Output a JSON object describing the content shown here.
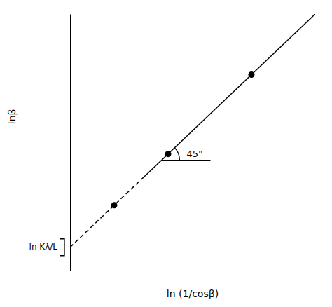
{
  "chart_data": {
    "type": "scatter",
    "xlabel": "ln (1/cosβ)",
    "ylabel": "lnβ",
    "annotations": [
      "45°",
      "ln Kλ/L"
    ],
    "xlim": [
      0.0,
      1.0
    ],
    "ylim": [
      0.0,
      1.1
    ],
    "tick_labels": false,
    "grid": false,
    "series": [
      {
        "type": "line",
        "line_style": "dashed",
        "color": "#000000",
        "x": [
          0.0,
          0.29
        ],
        "values": [
          0.1,
          0.39
        ]
      },
      {
        "type": "line",
        "line_style": "solid",
        "color": "#000000",
        "x": [
          0.29,
          1.0
        ],
        "values": [
          0.39,
          1.1
        ]
      },
      {
        "type": "scatter",
        "marker": "circle",
        "color": "#000000",
        "x": [
          0.18,
          0.4,
          0.74
        ],
        "values": [
          0.28,
          0.5,
          0.84
        ]
      }
    ]
  }
}
